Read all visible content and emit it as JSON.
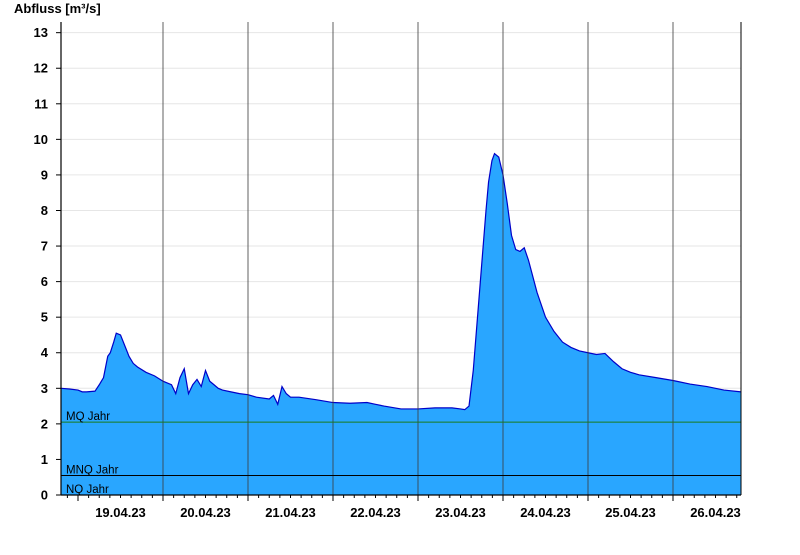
{
  "chart_data": {
    "type": "area",
    "ylabel": "Abfluss [m³/s]",
    "xlabel": "",
    "title": "",
    "ylim": [
      0,
      13.3
    ],
    "yticks": [
      "0",
      "1",
      "2",
      "3",
      "4",
      "5",
      "6",
      "7",
      "8",
      "9",
      "10",
      "11",
      "12",
      "13"
    ],
    "xticks": [
      "19.04.23",
      "20.04.23",
      "21.04.23",
      "22.04.23",
      "23.04.23",
      "24.04.23",
      "25.04.23",
      "26.04.23"
    ],
    "xlim_days": [
      -0.2,
      7.8
    ],
    "grid": true,
    "series": [
      {
        "fill_color": "#29a6ff",
        "line_color": "#0000c8",
        "x": [
          -0.2,
          -0.1,
          0.0,
          0.05,
          0.1,
          0.2,
          0.25,
          0.3,
          0.35,
          0.38,
          0.42,
          0.45,
          0.5,
          0.55,
          0.6,
          0.65,
          0.7,
          0.8,
          0.9,
          1.0,
          1.1,
          1.15,
          1.2,
          1.25,
          1.3,
          1.35,
          1.4,
          1.45,
          1.5,
          1.55,
          1.6,
          1.65,
          1.7,
          1.8,
          1.9,
          2.0,
          2.1,
          2.25,
          2.3,
          2.35,
          2.4,
          2.45,
          2.5,
          2.6,
          2.8,
          3.0,
          3.2,
          3.4,
          3.5,
          3.6,
          3.8,
          4.0,
          4.2,
          4.4,
          4.5,
          4.55,
          4.6,
          4.65,
          4.7,
          4.75,
          4.8,
          4.83,
          4.87,
          4.9,
          4.95,
          5.0,
          5.05,
          5.1,
          5.15,
          5.2,
          5.25,
          5.3,
          5.4,
          5.5,
          5.6,
          5.7,
          5.8,
          5.9,
          6.0,
          6.1,
          6.2,
          6.3,
          6.4,
          6.5,
          6.6,
          6.8,
          7.0,
          7.2,
          7.4,
          7.6,
          7.8
        ],
        "values": [
          3.0,
          2.98,
          2.95,
          2.9,
          2.9,
          2.92,
          3.1,
          3.3,
          3.9,
          4.0,
          4.3,
          4.55,
          4.5,
          4.2,
          3.9,
          3.7,
          3.6,
          3.45,
          3.35,
          3.2,
          3.1,
          2.85,
          3.3,
          3.55,
          2.85,
          3.1,
          3.25,
          3.05,
          3.5,
          3.2,
          3.1,
          3.0,
          2.95,
          2.9,
          2.85,
          2.82,
          2.75,
          2.7,
          2.8,
          2.55,
          3.05,
          2.85,
          2.75,
          2.75,
          2.68,
          2.6,
          2.58,
          2.6,
          2.55,
          2.5,
          2.42,
          2.42,
          2.45,
          2.45,
          2.42,
          2.4,
          2.5,
          3.5,
          5.0,
          6.5,
          8.0,
          8.8,
          9.4,
          9.6,
          9.5,
          9.0,
          8.2,
          7.3,
          6.9,
          6.85,
          6.95,
          6.6,
          5.7,
          5.0,
          4.6,
          4.3,
          4.15,
          4.05,
          4.0,
          3.95,
          3.98,
          3.75,
          3.55,
          3.45,
          3.38,
          3.3,
          3.22,
          3.12,
          3.05,
          2.95,
          2.9
        ]
      }
    ],
    "reference_lines": [
      {
        "label": "MQ Jahr",
        "value": 2.05,
        "color": "#1a7a1a"
      },
      {
        "label": "MNQ Jahr",
        "value": 0.55,
        "color": "#000000"
      },
      {
        "label": "NQ Jahr",
        "value": 0.0,
        "color": "#000000"
      }
    ]
  }
}
